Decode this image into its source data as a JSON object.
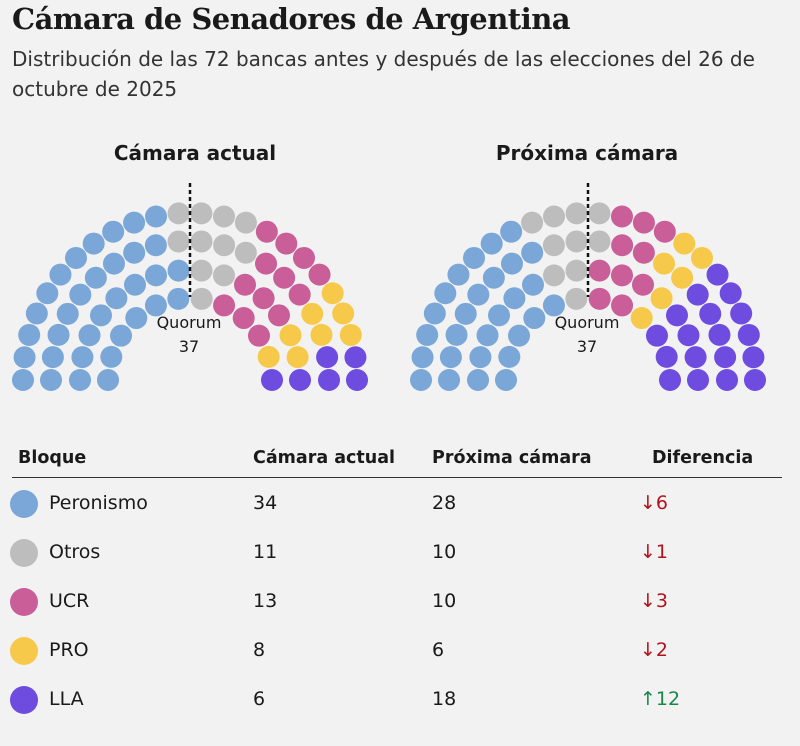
{
  "title": "Cámara de Senadores de Argentina",
  "subtitle": "Distribución de las 72 bancas antes y después de las elecciones del 26 de octubre de 2025",
  "colors": {
    "Peronismo": "#7aa7d7",
    "Otros": "#bdbdbd",
    "UCR": "#c95e98",
    "PRO": "#f7c94a",
    "LLA": "#6f4ce0",
    "down": "#b0151e",
    "up": "#17884a"
  },
  "chart_data": [
    {
      "type": "parliament",
      "title": "Cámara actual",
      "total_seats": 72,
      "quorum_label": "Quorum",
      "quorum": 37,
      "series": [
        {
          "name": "Peronismo",
          "value": 34
        },
        {
          "name": "Otros",
          "value": 11
        },
        {
          "name": "UCR",
          "value": 13
        },
        {
          "name": "PRO",
          "value": 8
        },
        {
          "name": "LLA",
          "value": 6
        }
      ]
    },
    {
      "type": "parliament",
      "title": "Próxima cámara",
      "total_seats": 72,
      "quorum_label": "Quorum",
      "quorum": 37,
      "series": [
        {
          "name": "Peronismo",
          "value": 28
        },
        {
          "name": "Otros",
          "value": 10
        },
        {
          "name": "UCR",
          "value": 10
        },
        {
          "name": "PRO",
          "value": 6
        },
        {
          "name": "LLA",
          "value": 18
        }
      ]
    }
  ],
  "table": {
    "headers": [
      "Bloque",
      "Cámara actual",
      "Próxima cámara",
      "Diferencia"
    ],
    "rows": [
      {
        "bloque": "Peronismo",
        "actual": "34",
        "proxima": "28",
        "diferencia": "↓6",
        "dir": "down"
      },
      {
        "bloque": "Otros",
        "actual": "11",
        "proxima": "10",
        "diferencia": "↓1",
        "dir": "down"
      },
      {
        "bloque": "UCR",
        "actual": "13",
        "proxima": "10",
        "diferencia": "↓3",
        "dir": "down"
      },
      {
        "bloque": "PRO",
        "actual": "8",
        "proxima": "6",
        "diferencia": "↓2",
        "dir": "down"
      },
      {
        "bloque": "LLA",
        "actual": "6",
        "proxima": "18",
        "diferencia": "↑12",
        "dir": "up"
      }
    ]
  }
}
